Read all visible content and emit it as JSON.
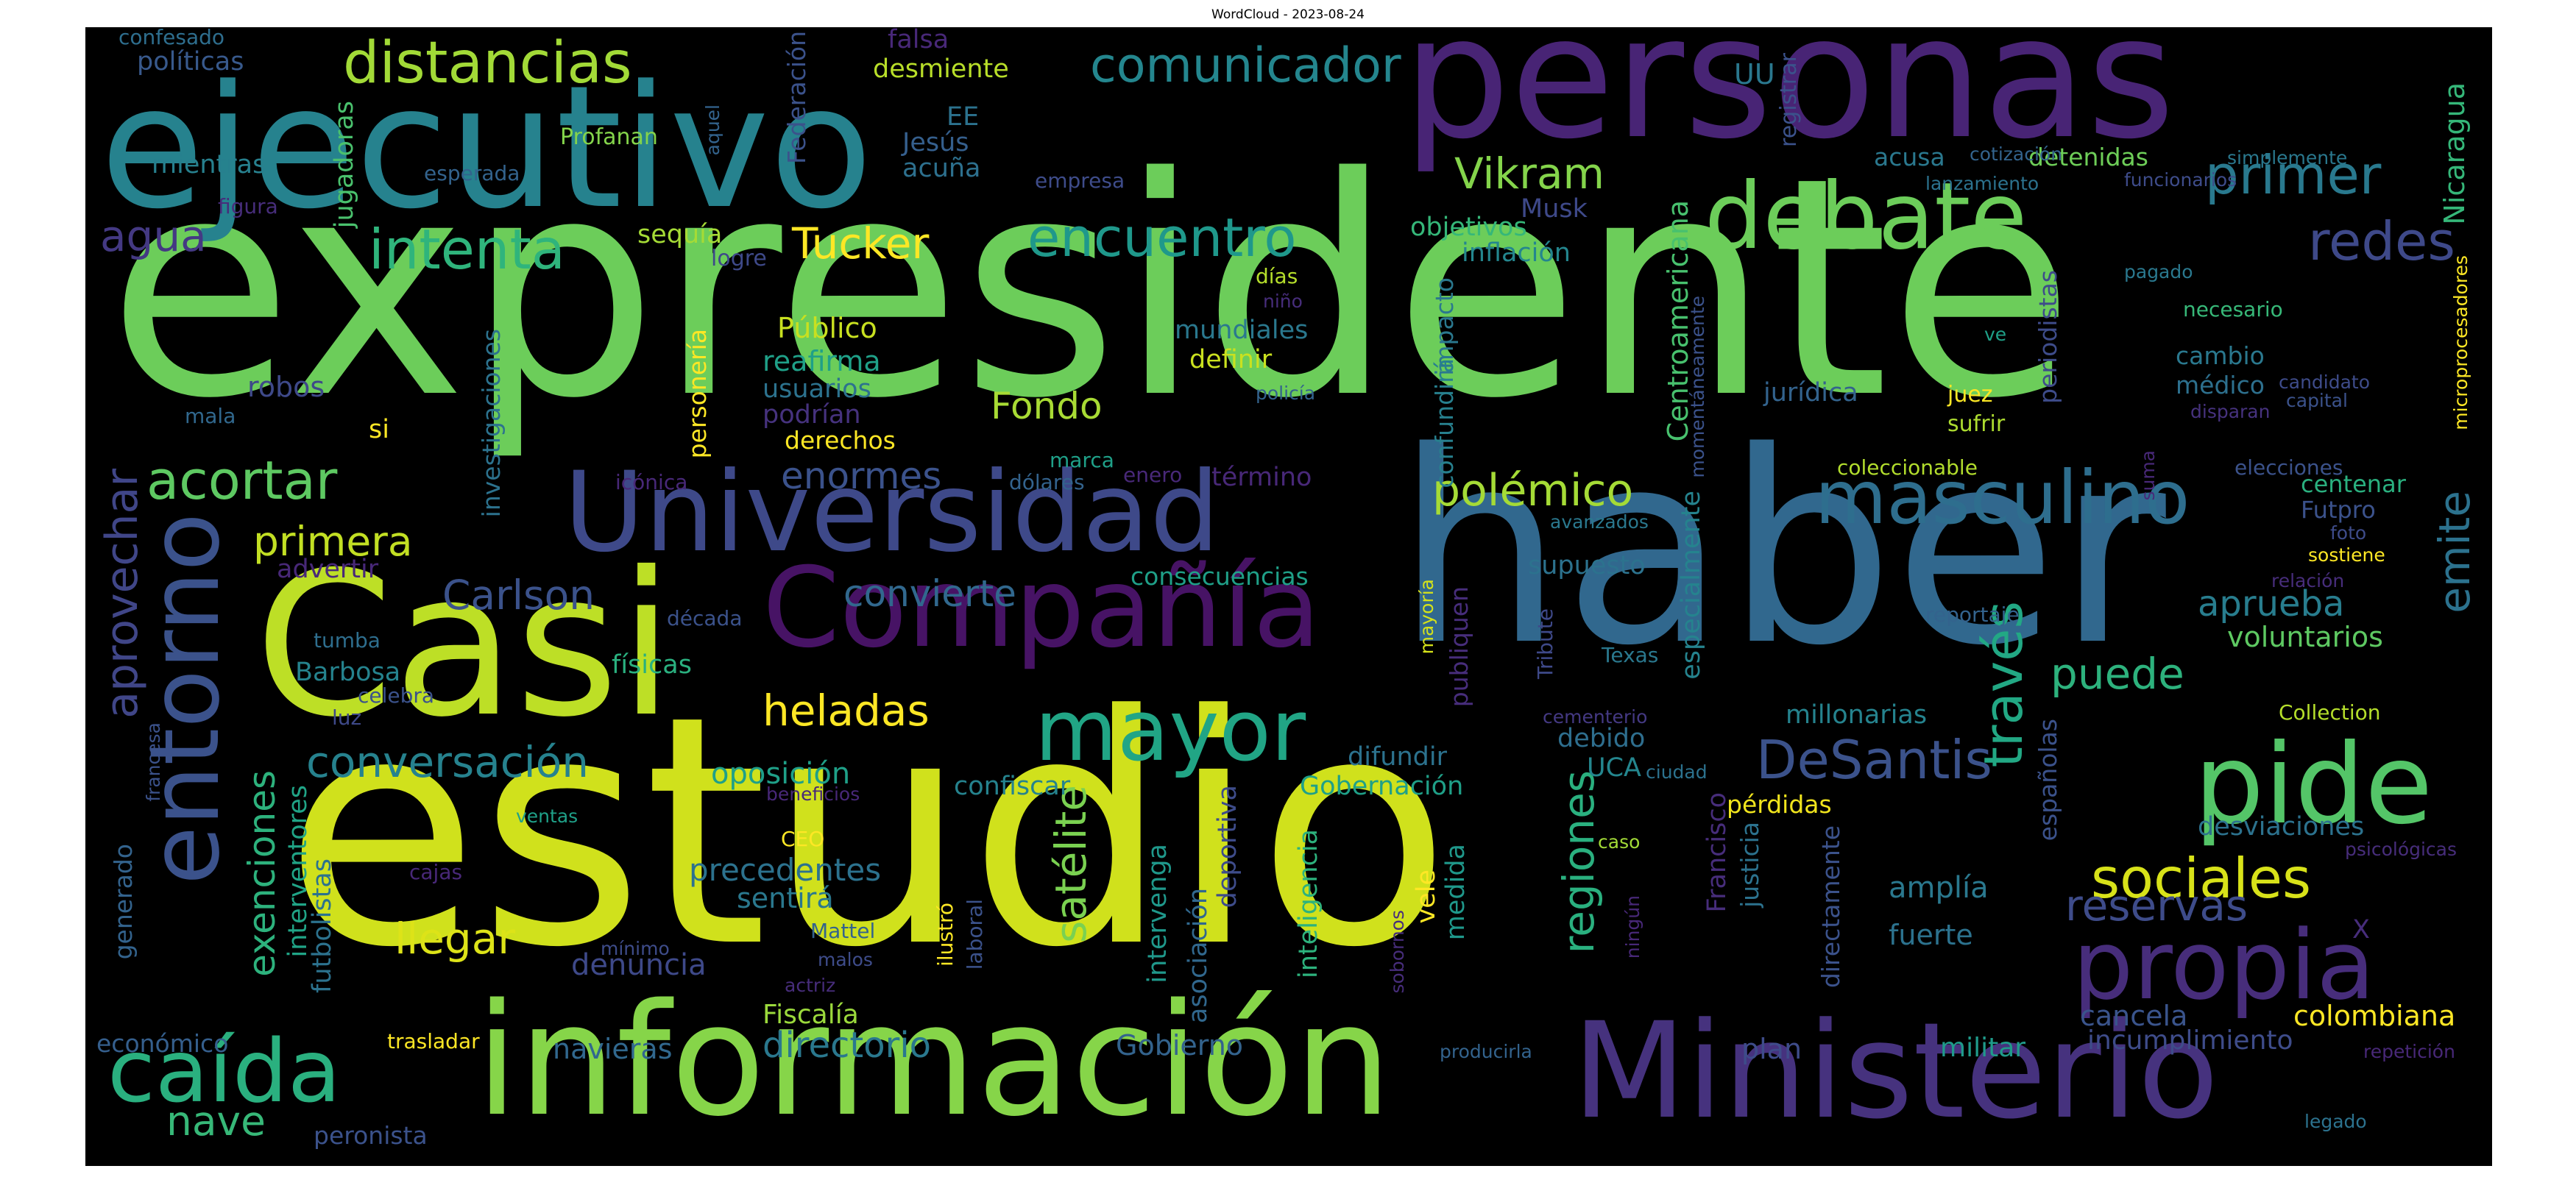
{
  "title": "WordCloud - 2023-08-24",
  "words": [
    {
      "text": "expresidente",
      "color": "#6ccd5a"
    },
    {
      "text": "estudio",
      "color": "#d0e11c"
    },
    {
      "text": "haber",
      "color": "#31688e"
    },
    {
      "text": "personas",
      "color": "#482475"
    },
    {
      "text": "ejecutivo",
      "color": "#26828e"
    },
    {
      "text": "Casi",
      "color": "#bddf26"
    },
    {
      "text": "información",
      "color": "#86d549"
    },
    {
      "text": "Ministerio",
      "color": "#46327e"
    },
    {
      "text": "Universidad",
      "color": "#3e4989"
    },
    {
      "text": "Compañía",
      "color": "#471365"
    },
    {
      "text": "debate",
      "color": "#6ccd5a"
    },
    {
      "text": "pide",
      "color": "#54c568"
    },
    {
      "text": "propia",
      "color": "#472d7b"
    },
    {
      "text": "mayor",
      "color": "#21a585"
    },
    {
      "text": "caída",
      "color": "#2ab07f"
    },
    {
      "text": "entorno",
      "color": "#3b528b"
    },
    {
      "text": "masculino",
      "color": "#2e6e8e"
    },
    {
      "text": "distancias",
      "color": "#a2da37"
    },
    {
      "text": "intenta",
      "color": "#2fb47c"
    },
    {
      "text": "encuentro",
      "color": "#1f988b"
    },
    {
      "text": "comunicador",
      "color": "#24868e"
    },
    {
      "text": "DeSantis",
      "color": "#3b528b"
    },
    {
      "text": "sociales",
      "color": "#d8e219"
    },
    {
      "text": "acortar",
      "color": "#5ec962"
    },
    {
      "text": "aprovechar",
      "color": "#404688"
    },
    {
      "text": "heladas",
      "color": "#fde725"
    },
    {
      "text": "polémico",
      "color": "#a5db36"
    },
    {
      "text": "conversación",
      "color": "#26828e"
    },
    {
      "text": "través",
      "color": "#22a884"
    },
    {
      "text": "primer",
      "color": "#29798e"
    },
    {
      "text": "Vikram",
      "color": "#84d44b"
    },
    {
      "text": "Tucker",
      "color": "#fde725"
    },
    {
      "text": "redes",
      "color": "#3e4989"
    },
    {
      "text": "agua",
      "color": "#443983"
    },
    {
      "text": "reservas",
      "color": "#3e4c8a"
    },
    {
      "text": "emite",
      "color": "#2c728e"
    },
    {
      "text": "satélite",
      "color": "#7ad151"
    },
    {
      "text": "llegar",
      "color": "#dde318"
    },
    {
      "text": "Carlson",
      "color": "#3b528b"
    },
    {
      "text": "convierte",
      "color": "#31688e"
    },
    {
      "text": "primera",
      "color": "#c2df23"
    },
    {
      "text": "enormes",
      "color": "#3b528b"
    },
    {
      "text": "puede",
      "color": "#2db27d"
    },
    {
      "text": "regiones",
      "color": "#2ab07f"
    },
    {
      "text": "Fondo",
      "color": "#a8db34"
    },
    {
      "text": "exenciones",
      "color": "#2db27d"
    },
    {
      "text": "directorio",
      "color": "#2a788e"
    },
    {
      "text": "aprueba",
      "color": "#287d8e"
    },
    {
      "text": "colombiana",
      "color": "#fde725"
    },
    {
      "text": "Nicaragua",
      "color": "#35b779"
    },
    {
      "text": "nave",
      "color": "#37b878"
    },
    {
      "text": "Fiscalía",
      "color": "#9bd93c"
    },
    {
      "text": "precedentes",
      "color": "#2c728e"
    },
    {
      "text": "sentirá",
      "color": "#2a788e"
    },
    {
      "text": "oposición",
      "color": "#1fa088"
    },
    {
      "text": "denuncia",
      "color": "#3e4989"
    },
    {
      "text": "navieras",
      "color": "#31688e"
    },
    {
      "text": "Gobierno",
      "color": "#33638d"
    },
    {
      "text": "voluntarios",
      "color": "#5ec962"
    },
    {
      "text": "amplía",
      "color": "#2a788e"
    },
    {
      "text": "fuerte",
      "color": "#2c728e"
    },
    {
      "text": "incumplimiento",
      "color": "#3e4c8a"
    },
    {
      "text": "cancela",
      "color": "#3a548c"
    },
    {
      "text": "desviaciones",
      "color": "#2c728e"
    },
    {
      "text": "millonarias",
      "color": "#25838e"
    },
    {
      "text": "supuesto",
      "color": "#2c728e"
    },
    {
      "text": "militar",
      "color": "#1f9a8a"
    },
    {
      "text": "plan",
      "color": "#3e4c8a"
    },
    {
      "text": "debido",
      "color": "#2e6e8e"
    },
    {
      "text": "UCA",
      "color": "#24868e"
    },
    {
      "text": "pérdidas",
      "color": "#f1e51d"
    },
    {
      "text": "centenar",
      "color": "#2ab07f"
    },
    {
      "text": "Futpro",
      "color": "#3b528b"
    },
    {
      "text": "médico",
      "color": "#2d708e"
    },
    {
      "text": "cambio",
      "color": "#2a788e"
    },
    {
      "text": "jurídica",
      "color": "#33638d"
    },
    {
      "text": "juez",
      "color": "#fde725"
    },
    {
      "text": "sufrir",
      "color": "#addc30"
    },
    {
      "text": "acusa",
      "color": "#2a788e"
    },
    {
      "text": "detenidas",
      "color": "#6ece58"
    },
    {
      "text": "funcionarios",
      "color": "#3e4c8a"
    },
    {
      "text": "lanzamiento",
      "color": "#2c728e"
    },
    {
      "text": "mientras",
      "color": "#27808e"
    },
    {
      "text": "políticas",
      "color": "#38598c"
    },
    {
      "text": "confesado",
      "color": "#2e6e8e"
    },
    {
      "text": "falsa",
      "color": "#482878"
    },
    {
      "text": "desmiente",
      "color": "#b8de29"
    },
    {
      "text": "Jesús",
      "color": "#355f8d"
    },
    {
      "text": "acuña",
      "color": "#2d708e"
    },
    {
      "text": "EE",
      "color": "#2c728e"
    },
    {
      "text": "UU",
      "color": "#2a788e"
    },
    {
      "text": "Profanan",
      "color": "#84d44b"
    },
    {
      "text": "empresa",
      "color": "#3e4c8a"
    },
    {
      "text": "esperada",
      "color": "#33638d"
    },
    {
      "text": "figura",
      "color": "#472d7b"
    },
    {
      "text": "cotización",
      "color": "#33638d"
    },
    {
      "text": "registrar",
      "color": "#3b528b"
    },
    {
      "text": "simplemente",
      "color": "#2a788e"
    },
    {
      "text": "objetivos",
      "color": "#35b779"
    },
    {
      "text": "inflación",
      "color": "#24868e"
    },
    {
      "text": "Musk",
      "color": "#3e4989"
    },
    {
      "text": "Centroamericana",
      "color": "#48c16e"
    },
    {
      "text": "sequía",
      "color": "#a5db36"
    },
    {
      "text": "logre",
      "color": "#3e4989"
    },
    {
      "text": "Público",
      "color": "#c8e020"
    },
    {
      "text": "reafirma",
      "color": "#1fa088"
    },
    {
      "text": "usuarios",
      "color": "#2c728e"
    },
    {
      "text": "podrían",
      "color": "#46327e"
    },
    {
      "text": "derechos",
      "color": "#fde725"
    },
    {
      "text": "mundiales",
      "color": "#2a788e"
    },
    {
      "text": "definir",
      "color": "#cae11f"
    },
    {
      "text": "días",
      "color": "#b5de2b"
    },
    {
      "text": "niño",
      "color": "#472d7b"
    },
    {
      "text": "policía",
      "color": "#33638d"
    },
    {
      "text": "pagado",
      "color": "#2a788e"
    },
    {
      "text": "necesario",
      "color": "#37b878"
    },
    {
      "text": "candidato",
      "color": "#3e4c8a"
    },
    {
      "text": "capital",
      "color": "#3b528b"
    },
    {
      "text": "disparan",
      "color": "#46327e"
    },
    {
      "text": "elecciones",
      "color": "#3b528b"
    },
    {
      "text": "coleccionable",
      "color": "#b2dd2d"
    },
    {
      "text": "suma",
      "color": "#482878"
    },
    {
      "text": "ve",
      "color": "#1fa088"
    },
    {
      "text": "robos",
      "color": "#3e4989"
    },
    {
      "text": "mala",
      "color": "#31688e"
    },
    {
      "text": "si",
      "color": "#fde725"
    },
    {
      "text": "advertir",
      "color": "#482878"
    },
    {
      "text": "icónica",
      "color": "#482878"
    },
    {
      "text": "dólares",
      "color": "#33638d"
    },
    {
      "text": "marca",
      "color": "#1fa088"
    },
    {
      "text": "enero",
      "color": "#482878"
    },
    {
      "text": "término",
      "color": "#482878"
    },
    {
      "text": "avanzados",
      "color": "#2a788e"
    },
    {
      "text": "consecuencias",
      "color": "#1fa088"
    },
    {
      "text": "tumba",
      "color": "#2e6e8e"
    },
    {
      "text": "Barbosa",
      "color": "#25838e"
    },
    {
      "text": "celebra",
      "color": "#3b528b"
    },
    {
      "text": "luz",
      "color": "#3e4989"
    },
    {
      "text": "físicas",
      "color": "#2ab07f"
    },
    {
      "text": "década",
      "color": "#3b528b"
    },
    {
      "text": "relación",
      "color": "#472d7b"
    },
    {
      "text": "sostiene",
      "color": "#fde725"
    },
    {
      "text": "foto",
      "color": "#3e4c8a"
    },
    {
      "text": "reportaje",
      "color": "#33638d"
    },
    {
      "text": "Collection",
      "color": "#b5de2b"
    },
    {
      "text": "Texas",
      "color": "#2a788e"
    },
    {
      "text": "cementerio",
      "color": "#443983"
    },
    {
      "text": "ciudad",
      "color": "#2c728e"
    },
    {
      "text": "beneficios",
      "color": "#482878"
    },
    {
      "text": "ventas",
      "color": "#1fa088"
    },
    {
      "text": "CEO",
      "color": "#fde725"
    },
    {
      "text": "cajas",
      "color": "#482878"
    },
    {
      "text": "generado",
      "color": "#33638d"
    },
    {
      "text": "mínimo",
      "color": "#3e4c8a"
    },
    {
      "text": "Mattel",
      "color": "#33638d"
    },
    {
      "text": "malos",
      "color": "#3e4c8a"
    },
    {
      "text": "actriz",
      "color": "#472d7b"
    },
    {
      "text": "económico",
      "color": "#355f8d"
    },
    {
      "text": "trasladar",
      "color": "#fde725"
    },
    {
      "text": "peronista",
      "color": "#3b528b"
    },
    {
      "text": "caso",
      "color": "#a2da37"
    },
    {
      "text": "psicológicas",
      "color": "#472d7b"
    },
    {
      "text": "producirla",
      "color": "#33638d"
    },
    {
      "text": "X",
      "color": "#472d7b"
    },
    {
      "text": "legado",
      "color": "#2c728e"
    },
    {
      "text": "repetición",
      "color": "#482878"
    },
    {
      "text": "microprocesadores",
      "color": "#fde725"
    },
    {
      "text": "Federación",
      "color": "#3b528b"
    },
    {
      "text": "aquel",
      "color": "#33638d"
    },
    {
      "text": "jugadoras",
      "color": "#4ac16d"
    },
    {
      "text": "investigaciones",
      "color": "#2c728e"
    },
    {
      "text": "personería",
      "color": "#fde725"
    },
    {
      "text": "impacto",
      "color": "#2a788e"
    },
    {
      "text": "confundirá",
      "color": "#27808e"
    },
    {
      "text": "momentáneamente",
      "color": "#3b528b"
    },
    {
      "text": "especialmente",
      "color": "#25838e"
    },
    {
      "text": "periodistas",
      "color": "#3e4c8a"
    },
    {
      "text": "españolas",
      "color": "#3b528b"
    },
    {
      "text": "Francisco",
      "color": "#472d7b"
    },
    {
      "text": "justicia",
      "color": "#2c728e"
    },
    {
      "text": "directamente",
      "color": "#3b528b"
    },
    {
      "text": "publiquen",
      "color": "#472d7b"
    },
    {
      "text": "mayoría",
      "color": "#d5e21a"
    },
    {
      "text": "Tribute",
      "color": "#3e4989"
    },
    {
      "text": "difundir",
      "color": "#2c728e"
    },
    {
      "text": "Gobernación",
      "color": "#1fa088"
    },
    {
      "text": "confiscar",
      "color": "#25838e"
    },
    {
      "text": "intervenga",
      "color": "#1f988b"
    },
    {
      "text": "asociación",
      "color": "#31688e"
    },
    {
      "text": "deportiva",
      "color": "#3e4c8a"
    },
    {
      "text": "inteligencia",
      "color": "#2db27d"
    },
    {
      "text": "vele",
      "color": "#fde725"
    },
    {
      "text": "medida",
      "color": "#1f988b"
    },
    {
      "text": "sobornos",
      "color": "#472d7b"
    },
    {
      "text": "ningún",
      "color": "#482878"
    },
    {
      "text": "interventores",
      "color": "#20a486"
    },
    {
      "text": "futbolistas",
      "color": "#2c728e"
    },
    {
      "text": "francesa",
      "color": "#3b528b"
    },
    {
      "text": "ilustró",
      "color": "#fde725"
    },
    {
      "text": "laboral",
      "color": "#3b528b"
    }
  ]
}
